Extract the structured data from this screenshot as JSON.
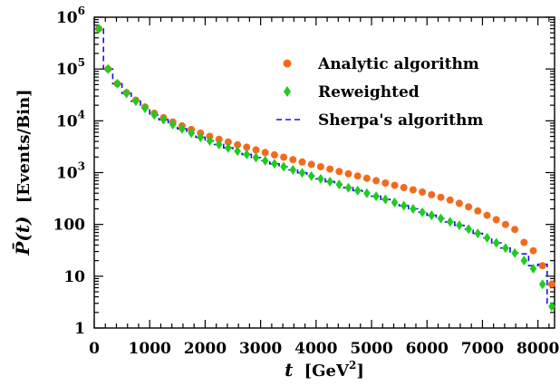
{
  "chart_data": {
    "type": "scatter",
    "xlabel_main": "t",
    "xlabel_unit": "[GeV",
    "xlabel_sup": "2",
    "xlabel_close": "]",
    "ylabel_main": "P̄(t)",
    "ylabel_unit": "[Events/Bin]",
    "xlim": [
      0,
      8300
    ],
    "ylim": [
      1,
      1000000
    ],
    "yscale": "log",
    "x_ticks": [
      0,
      1000,
      2000,
      3000,
      4000,
      5000,
      6000,
      7000,
      8000
    ],
    "x_tick_labels": [
      "0",
      "1000",
      "2000",
      "3000",
      "4000",
      "5000",
      "6000",
      "7000",
      "8000"
    ],
    "y_ticks": [
      1,
      10,
      100,
      1000,
      10000,
      100000,
      1000000
    ],
    "y_tick_labels": [
      {
        "base": "1",
        "sup": ""
      },
      {
        "base": "10",
        "sup": ""
      },
      {
        "base": "100",
        "sup": ""
      },
      {
        "base": "10",
        "sup": "3"
      },
      {
        "base": "10",
        "sup": "4"
      },
      {
        "base": "10",
        "sup": "5"
      },
      {
        "base": "10",
        "sup": "6"
      }
    ],
    "legend_position": "top-right",
    "x": [
      83,
      250,
      416,
      583,
      750,
      916,
      1083,
      1250,
      1416,
      1583,
      1750,
      1916,
      2083,
      2250,
      2416,
      2583,
      2750,
      2916,
      3083,
      3250,
      3416,
      3583,
      3750,
      3916,
      4083,
      4250,
      4416,
      4583,
      4750,
      4916,
      5083,
      5250,
      5416,
      5583,
      5750,
      5916,
      6083,
      6250,
      6416,
      6583,
      6750,
      6916,
      7083,
      7250,
      7416,
      7583,
      7750,
      7916,
      8083,
      8250
    ],
    "series": [
      {
        "name": "Analytic algorithm",
        "marker": "circle",
        "color": "#f26b1d",
        "values": [
          600000,
          100000,
          52000,
          35000,
          25000,
          18500,
          14000,
          11500,
          9500,
          8000,
          6800,
          5800,
          5000,
          4400,
          3900,
          3450,
          3100,
          2750,
          2450,
          2200,
          1980,
          1780,
          1600,
          1440,
          1300,
          1170,
          1050,
          950,
          860,
          780,
          700,
          630,
          570,
          515,
          465,
          420,
          375,
          335,
          295,
          255,
          218,
          182,
          150,
          123,
          100,
          80,
          45,
          31,
          16,
          7
        ]
      },
      {
        "name": "Reweighted",
        "marker": "diamond",
        "color": "#1fcc1f",
        "values": [
          600000,
          100000,
          52000,
          34000,
          24000,
          17500,
          13000,
          10500,
          8500,
          7000,
          5800,
          4800,
          4100,
          3500,
          3000,
          2600,
          2250,
          1950,
          1700,
          1480,
          1300,
          1130,
          990,
          860,
          760,
          670,
          590,
          510,
          450,
          400,
          350,
          305,
          265,
          230,
          200,
          172,
          150,
          130,
          112,
          96,
          81,
          67,
          55,
          44,
          35,
          28,
          20,
          14,
          7,
          2.6
        ]
      },
      {
        "name": "Sherpa's algorithm",
        "marker": "dashed-step",
        "color": "#1414e6",
        "values": [
          600000,
          100000,
          52000,
          34000,
          24000,
          17500,
          13000,
          10500,
          8500,
          7000,
          5800,
          4800,
          4100,
          3500,
          3000,
          2600,
          2250,
          1950,
          1700,
          1480,
          1300,
          1130,
          990,
          860,
          760,
          670,
          590,
          510,
          450,
          400,
          350,
          305,
          265,
          230,
          200,
          172,
          150,
          130,
          112,
          96,
          81,
          67,
          55,
          44,
          35,
          28,
          27,
          16,
          17,
          3
        ]
      }
    ]
  }
}
